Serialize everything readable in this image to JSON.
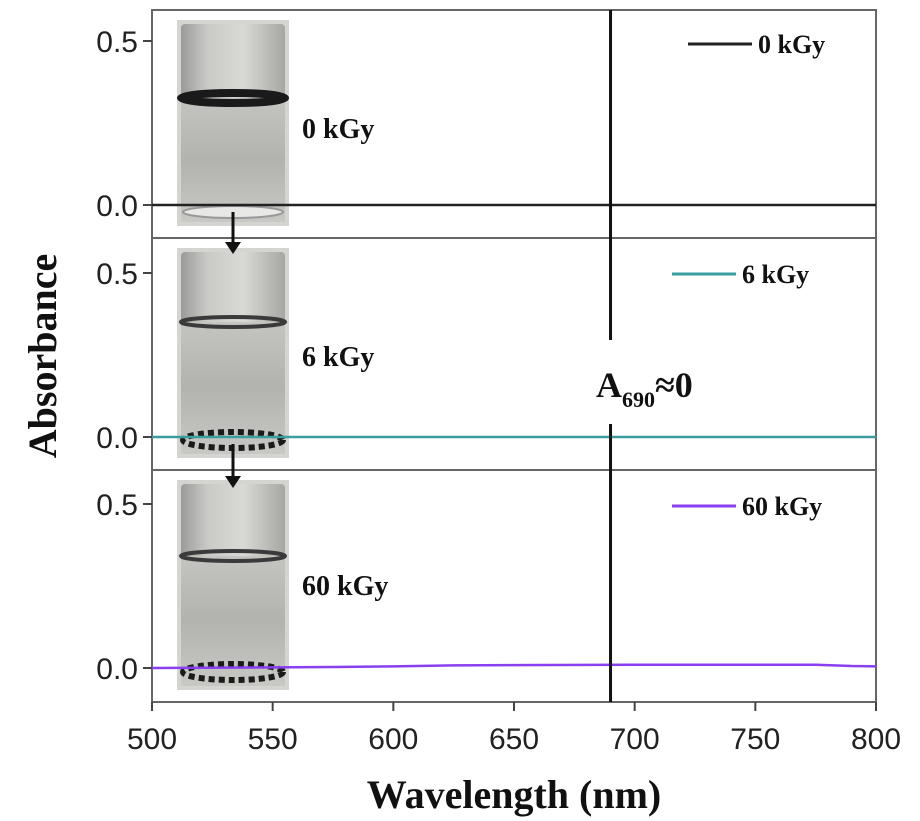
{
  "chart_data": {
    "type": "line",
    "xlabel": "Wavelength (nm)",
    "ylabel": "Absorbance",
    "xlim": [
      500,
      800
    ],
    "x_ticks": [
      "500",
      "550",
      "600",
      "650",
      "700",
      "750",
      "800"
    ],
    "y_ticks": [
      "0.0",
      "0.5"
    ],
    "panels": [
      {
        "series_name": "0 kGy",
        "legend": "0 kGy",
        "photo_label": "0 kGy",
        "color": "#222222",
        "ylim": [
          -0.1,
          0.6
        ],
        "x": [
          500,
          800
        ],
        "y": [
          0.0,
          0.0
        ]
      },
      {
        "series_name": "6 kGy",
        "legend": "6 kGy",
        "photo_label": "6 kGy",
        "color": "#3a9ea0",
        "ylim": [
          -0.1,
          0.6
        ],
        "x": [
          500,
          800
        ],
        "y": [
          0.0,
          0.0
        ]
      },
      {
        "series_name": "60 kGy",
        "legend": "60 kGy",
        "photo_label": "60 kGy",
        "color": "#8a3ff0",
        "ylim": [
          -0.1,
          0.6
        ],
        "x": [
          500,
          575,
          600,
          625,
          700,
          775,
          790,
          800
        ],
        "y": [
          0.0,
          0.003,
          0.005,
          0.008,
          0.01,
          0.01,
          0.006,
          0.005
        ]
      }
    ],
    "annotation": {
      "text_main": "A",
      "text_sub": "690",
      "text_tail": "≈0",
      "x": 690
    }
  }
}
